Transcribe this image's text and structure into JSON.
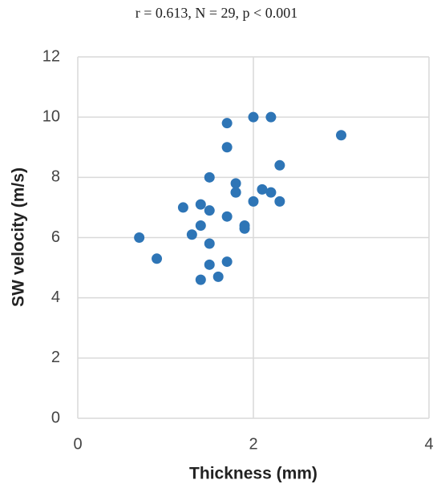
{
  "chart_data": {
    "type": "scatter",
    "title": "r = 0.613, N = 29, p < 0.001",
    "x_label": "Thickness (mm)",
    "y_label": "SW velocity (m/s)",
    "x": [
      0.7,
      0.9,
      1.2,
      1.3,
      1.4,
      1.4,
      1.4,
      1.5,
      1.5,
      1.5,
      1.5,
      1.6,
      1.7,
      1.7,
      1.7,
      1.7,
      1.8,
      1.8,
      1.8,
      1.9,
      1.9,
      2.0,
      2.0,
      2.1,
      2.2,
      2.2,
      2.3,
      2.3,
      3.0
    ],
    "values": [
      6.0,
      5.3,
      7.0,
      6.1,
      7.1,
      6.4,
      4.6,
      8.0,
      6.9,
      5.8,
      5.1,
      4.7,
      9.8,
      9.0,
      6.7,
      5.2,
      7.8,
      7.5,
      7.5,
      6.4,
      6.3,
      10.0,
      7.2,
      7.6,
      10.0,
      7.5,
      8.4,
      7.2,
      9.4
    ],
    "color": "#2e75b6",
    "xlim": [
      0,
      4
    ],
    "xticks": [
      0,
      2,
      4
    ],
    "ylim": [
      0,
      12
    ],
    "yticks": [
      0,
      2,
      4,
      6,
      8,
      10,
      12
    ],
    "grid": true
  }
}
